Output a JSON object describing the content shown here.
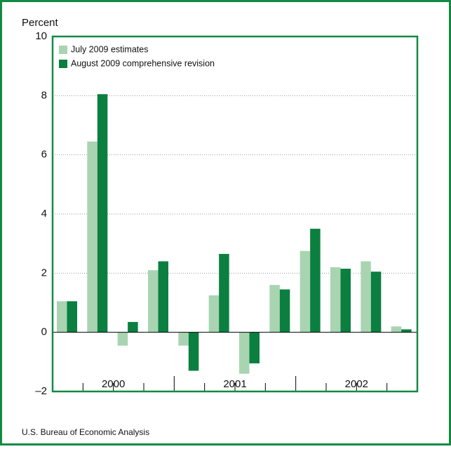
{
  "chart_data": {
    "type": "bar",
    "y_label": "Percent",
    "source": "U.S. Bureau of Economic Analysis",
    "categories": [
      null,
      null,
      null,
      null,
      null,
      null,
      null,
      null,
      null,
      null,
      null,
      null
    ],
    "groups": [
      "2000",
      "2001",
      "2002"
    ],
    "series": [
      {
        "name": "July 2009 estimates",
        "color": "#a9d4b1",
        "values": [
          1.05,
          6.45,
          -0.45,
          2.1,
          -0.45,
          1.25,
          -1.4,
          1.6,
          2.75,
          2.2,
          2.4,
          0.2
        ]
      },
      {
        "name": "August 2009 comprehensive revision",
        "color": "#0b7f3f",
        "values": [
          1.05,
          8.05,
          0.35,
          2.4,
          -1.3,
          2.65,
          -1.05,
          1.45,
          3.5,
          2.15,
          2.05,
          0.1
        ]
      }
    ],
    "ylim": [
      -2,
      10
    ],
    "yticks": [
      {
        "value": -2,
        "label": "–2"
      },
      0,
      2,
      4,
      6,
      8,
      10
    ],
    "grid": true,
    "legend": "top-left"
  }
}
